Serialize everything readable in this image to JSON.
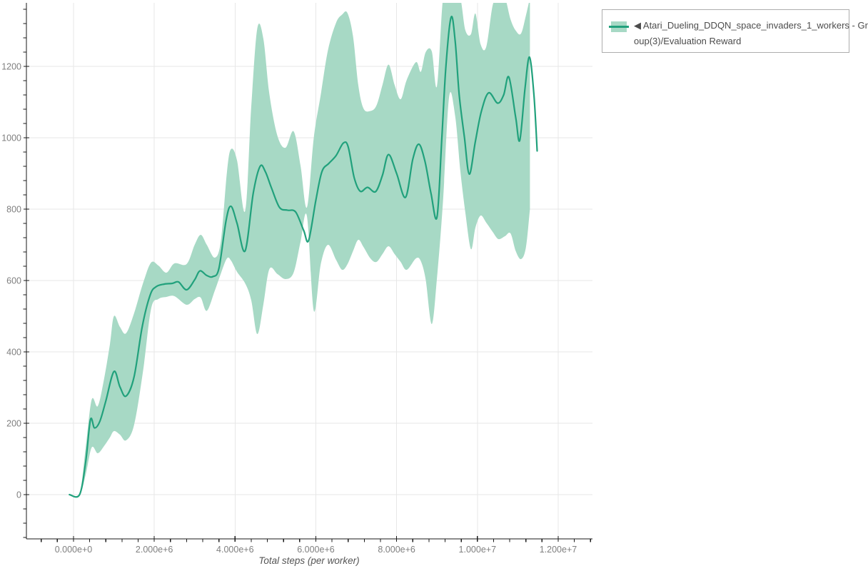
{
  "page": {
    "background": "#ffffff"
  },
  "legend": {
    "lines": [
      "◀ Atari_Dueling_DDQN_space_invaders_1_workers - Gr",
      "oup(3)/Evaluation Reward"
    ],
    "full_label": "◀ Atari_Dueling_DDQN_space_invaders_1_workers - Group(3)/Evaluation Reward"
  },
  "chart_data": {
    "type": "line",
    "title": "",
    "xlabel": "Total steps (per worker)",
    "ylabel": "",
    "grid": true,
    "legend_position": "top-right",
    "x_range": [
      -1166000,
      12849000
    ],
    "y_range": [
      -124,
      1378
    ],
    "x_tick_values": [
      0,
      2000000,
      4000000,
      6000000,
      8000000,
      10000000,
      12000000
    ],
    "x_tick_labels": [
      "0.000e+0",
      "2.000e+6",
      "4.000e+6",
      "6.000e+6",
      "8.000e+6",
      "1.000e+7",
      "1.200e+7"
    ],
    "x_minor_tick_step": 400000,
    "y_tick_values": [
      0,
      200,
      400,
      600,
      800,
      1000,
      1200
    ],
    "y_tick_labels": [
      "0",
      "200",
      "400",
      "600",
      "800",
      "1000",
      "1200"
    ],
    "y_minor_tick_step": 40,
    "colors": {
      "line": "#21a17c",
      "band": "#a7d9c5",
      "grid": "#e7e7e7",
      "axis": "#1a1a1a",
      "tick_label": "#7f7f7f",
      "axis_title": "#555555",
      "legend_text": "#4c4c4c",
      "legend_border": "#adadad"
    },
    "series": [
      {
        "name": "Atari_Dueling_DDQN_space_invaders_1_workers - Group(3)/Evaluation Reward",
        "x": [
          -100000,
          150000,
          300000,
          420000,
          520000,
          650000,
          800000,
          1000000,
          1150000,
          1300000,
          1500000,
          1700000,
          1900000,
          2050000,
          2250000,
          2450000,
          2600000,
          2800000,
          3000000,
          3130000,
          3300000,
          3450000,
          3600000,
          3780000,
          3900000,
          4050000,
          4250000,
          4450000,
          4620000,
          4750000,
          4900000,
          5100000,
          5300000,
          5500000,
          5700000,
          5820000,
          6000000,
          6150000,
          6320000,
          6500000,
          6680000,
          6800000,
          6950000,
          7100000,
          7280000,
          7480000,
          7650000,
          7800000,
          8000000,
          8220000,
          8400000,
          8550000,
          8700000,
          8850000,
          9000000,
          9120000,
          9220000,
          9350000,
          9450000,
          9550000,
          9680000,
          9800000,
          9950000,
          10100000,
          10280000,
          10500000,
          10650000,
          10780000,
          10950000,
          11050000,
          11180000,
          11290000,
          11400000,
          11480000
        ],
        "mean": [
          0,
          0,
          90,
          210,
          187,
          205,
          262,
          345,
          302,
          276,
          330,
          470,
          560,
          583,
          590,
          592,
          596,
          574,
          602,
          627,
          614,
          611,
          634,
          770,
          808,
          760,
          683,
          845,
          920,
          905,
          860,
          805,
          797,
          792,
          740,
          712,
          825,
          905,
          928,
          950,
          985,
          975,
          888,
          850,
          861,
          849,
          895,
          953,
          900,
          833,
          940,
          982,
          935,
          845,
          778,
          1000,
          1200,
          1338,
          1270,
          1120,
          1000,
          898,
          990,
          1075,
          1126,
          1097,
          1120,
          1170,
          1055,
          993,
          1140,
          1226,
          1120,
          963
        ],
        "band_x": [
          -100000,
          150000,
          300000,
          450000,
          600000,
          750000,
          900000,
          1000000,
          1150000,
          1300000,
          1500000,
          1720000,
          1920000,
          2100000,
          2300000,
          2500000,
          2800000,
          3000000,
          3150000,
          3300000,
          3500000,
          3650000,
          3800000,
          3900000,
          4050000,
          4250000,
          4400000,
          4550000,
          4700000,
          4850000,
          5050000,
          5250000,
          5450000,
          5620000,
          5780000,
          5950000,
          6120000,
          6300000,
          6500000,
          6650000,
          6780000,
          6920000,
          7050000,
          7180000,
          7350000,
          7500000,
          7650000,
          7800000,
          7950000,
          8100000,
          8250000,
          8480000,
          8600000,
          8720000,
          8870000,
          9000000,
          9150000,
          9300000,
          9450000,
          9580000,
          9700000,
          9840000,
          9950000,
          10080000,
          10220000,
          10380000,
          10520000,
          10680000,
          10820000,
          10950000,
          11080000,
          11200000,
          11300000
        ],
        "band_lower": [
          0,
          0,
          55,
          132,
          116,
          135,
          160,
          178,
          168,
          152,
          195,
          345,
          520,
          548,
          554,
          556,
          532,
          548,
          552,
          515,
          572,
          620,
          662,
          656,
          624,
          592,
          545,
          450,
          532,
          632,
          618,
          604,
          622,
          708,
          780,
          515,
          645,
          700,
          658,
          630,
          645,
          682,
          714,
          694,
          662,
          652,
          674,
          696,
          674,
          652,
          630,
          662,
          654,
          602,
          478,
          608,
          825,
          1115,
          1060,
          905,
          792,
          688,
          748,
          782,
          762,
          736,
          716,
          724,
          732,
          682,
          660,
          692,
          800
        ],
        "band_upper": [
          0,
          4,
          130,
          266,
          248,
          320,
          420,
          500,
          470,
          452,
          508,
          592,
          650,
          642,
          622,
          648,
          646,
          700,
          728,
          700,
          664,
          712,
          905,
          968,
          936,
          795,
          1085,
          1306,
          1278,
          1122,
          1005,
          972,
          1018,
          922,
          805,
          1000,
          1120,
          1245,
          1322,
          1345,
          1350,
          1285,
          1148,
          1082,
          1075,
          1090,
          1148,
          1205,
          1148,
          1108,
          1162,
          1212,
          1185,
          1240,
          1242,
          1145,
          1392,
          1392,
          1392,
          1390,
          1302,
          1290,
          1348,
          1262,
          1255,
          1372,
          1392,
          1392,
          1332,
          1300,
          1292,
          1342,
          1392
        ]
      }
    ]
  }
}
